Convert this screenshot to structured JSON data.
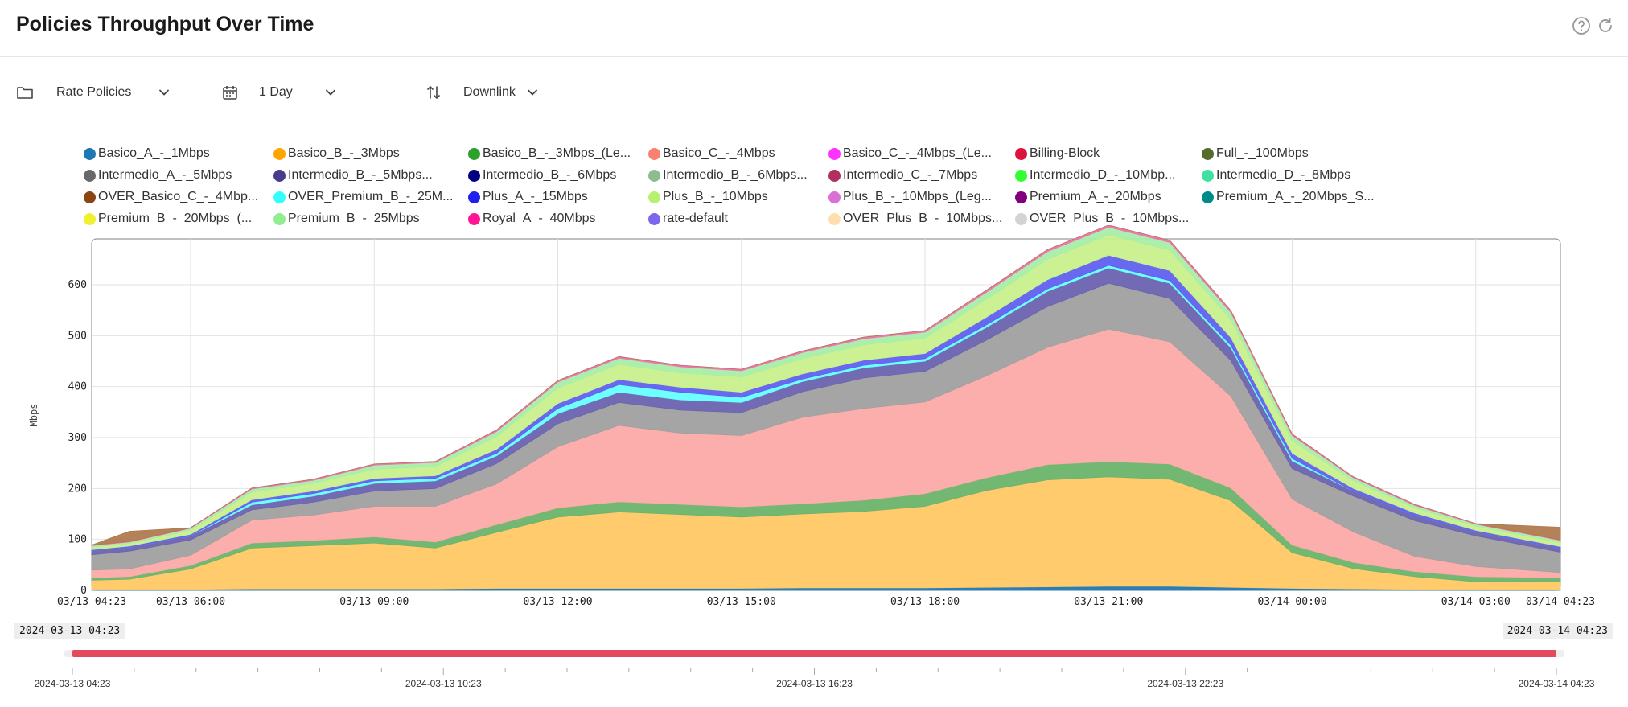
{
  "header": {
    "title": "Policies Throughput Over Time"
  },
  "toolbar": {
    "policy_label": "Rate Policies",
    "period_label": "1 Day",
    "direction_label": "Downlink"
  },
  "legend": [
    {
      "name": "Basico_A_-_1Mbps",
      "color": "#1f77b4"
    },
    {
      "name": "Basico_B_-_3Mbps",
      "color": "#ffa500"
    },
    {
      "name": "Basico_B_-_3Mbps_(Le...",
      "color": "#2ca02c"
    },
    {
      "name": "Basico_C_-_4Mbps",
      "color": "#fa8072"
    },
    {
      "name": "Basico_C_-_4Mbps_(Le...",
      "color": "#ff33ff"
    },
    {
      "name": "Billing-Block",
      "color": "#dc143c"
    },
    {
      "name": "Full_-_100Mbps",
      "color": "#556b2f"
    },
    {
      "name": "Intermedio_A_-_5Mbps",
      "color": "#696969"
    },
    {
      "name": "Intermedio_B_-_5Mbps...",
      "color": "#483d8b"
    },
    {
      "name": "Intermedio_B_-_6Mbps",
      "color": "#000080"
    },
    {
      "name": "Intermedio_B_-_6Mbps...",
      "color": "#8fbc8f"
    },
    {
      "name": "Intermedio_C_-_7Mbps",
      "color": "#b03060"
    },
    {
      "name": "Intermedio_D_-_10Mbp...",
      "color": "#32ff32"
    },
    {
      "name": "Intermedio_D_-_8Mbps",
      "color": "#40e0a0"
    },
    {
      "name": "OVER_Basico_C_-_4Mbp...",
      "color": "#8b4513"
    },
    {
      "name": "OVER_Premium_B_-_25M...",
      "color": "#33ffff"
    },
    {
      "name": "Plus_A_-_15Mbps",
      "color": "#2020ee"
    },
    {
      "name": "Plus_B_-_10Mbps",
      "color": "#b8f070"
    },
    {
      "name": "Plus_B_-_10Mbps_(Leg...",
      "color": "#da70d6"
    },
    {
      "name": "Premium_A_-_20Mbps",
      "color": "#800080"
    },
    {
      "name": "Premium_A_-_20Mbps_S...",
      "color": "#008b8b"
    },
    {
      "name": "Premium_B_-_20Mbps_(...",
      "color": "#f0f030"
    },
    {
      "name": "Premium_B_-_25Mbps",
      "color": "#90ee90"
    },
    {
      "name": "Royal_A_-_40Mbps",
      "color": "#ff1493"
    },
    {
      "name": "rate-default",
      "color": "#7b68ee"
    },
    {
      "name": "OVER_Plus_B_-_10Mbps...",
      "color": "#ffdead"
    },
    {
      "name": "OVER_Plus_B_-_10Mbps...",
      "color": "#d3d3d3"
    }
  ],
  "chart_data": {
    "type": "area",
    "stacked": true,
    "ylabel": "Mbps",
    "ylim": [
      0,
      690
    ],
    "yticks": [
      0,
      100,
      200,
      300,
      400,
      500,
      600
    ],
    "xtick_labels": [
      "03/13 04:23",
      "03/13 06:00",
      "03/13 09:00",
      "03/13 12:00",
      "03/13 15:00",
      "03/13 18:00",
      "03/13 21:00",
      "03/14 00:00",
      "03/14 03:00",
      "03/14 04:23"
    ],
    "grid": true,
    "legend_position": "top",
    "x": [
      "03/13 04:23",
      "03/13 05:00",
      "03/13 06:00",
      "03/13 07:00",
      "03/13 08:00",
      "03/13 09:00",
      "03/13 10:00",
      "03/13 11:00",
      "03/13 12:00",
      "03/13 13:00",
      "03/13 14:00",
      "03/13 15:00",
      "03/13 16:00",
      "03/13 17:00",
      "03/13 18:00",
      "03/13 19:00",
      "03/13 20:00",
      "03/13 21:00",
      "03/13 22:00",
      "03/13 23:00",
      "03/14 00:00",
      "03/14 01:00",
      "03/14 02:00",
      "03/14 03:00",
      "03/14 04:23"
    ],
    "series": [
      {
        "name": "Basico_A_-_1Mbps",
        "color": "#1f77b4",
        "values": [
          2,
          2,
          2,
          3,
          3,
          3,
          3,
          4,
          4,
          4,
          4,
          4,
          5,
          5,
          5,
          6,
          7,
          8,
          8,
          6,
          4,
          3,
          2,
          2,
          2
        ]
      },
      {
        "name": "Basico_B_-_3Mbps",
        "color": "#ffc864",
        "values": [
          18,
          20,
          40,
          80,
          85,
          90,
          80,
          110,
          140,
          150,
          145,
          140,
          145,
          150,
          160,
          190,
          210,
          215,
          210,
          170,
          70,
          40,
          25,
          15,
          15
        ]
      },
      {
        "name": "Basico_B_-_3Mbps_(Le...",
        "color": "#6ab46a",
        "values": [
          5,
          5,
          7,
          10,
          10,
          12,
          12,
          15,
          18,
          20,
          20,
          20,
          20,
          22,
          25,
          25,
          30,
          30,
          30,
          25,
          15,
          12,
          10,
          10,
          8
        ]
      },
      {
        "name": "Basico_C_-_4Mbps",
        "color": "#fbaaa6",
        "values": [
          15,
          15,
          20,
          45,
          50,
          60,
          70,
          80,
          120,
          150,
          140,
          140,
          170,
          180,
          180,
          200,
          230,
          260,
          240,
          180,
          90,
          60,
          30,
          20,
          10
        ]
      },
      {
        "name": "Intermedio_A_-_5Mbps",
        "color": "#a0a0a0",
        "values": [
          30,
          35,
          30,
          20,
          25,
          30,
          35,
          40,
          45,
          45,
          45,
          45,
          50,
          60,
          60,
          70,
          80,
          90,
          85,
          70,
          60,
          70,
          70,
          60,
          40
        ]
      },
      {
        "name": "Intermedio_B_-_5Mbps...",
        "color": "#6a63b0",
        "values": [
          8,
          8,
          8,
          10,
          12,
          15,
          15,
          15,
          20,
          20,
          20,
          20,
          20,
          20,
          20,
          25,
          30,
          30,
          30,
          25,
          15,
          10,
          10,
          8,
          8
        ]
      },
      {
        "name": "OVER_Premium_B_-_25M...",
        "color": "#66ffff",
        "values": [
          0,
          0,
          0,
          5,
          5,
          5,
          5,
          5,
          10,
          15,
          15,
          10,
          5,
          5,
          5,
          5,
          5,
          5,
          5,
          5,
          5,
          0,
          0,
          0,
          0
        ]
      },
      {
        "name": "Plus_A_-_15Mbps",
        "color": "#6060f0",
        "values": [
          2,
          2,
          3,
          5,
          5,
          5,
          5,
          8,
          10,
          10,
          10,
          10,
          10,
          10,
          10,
          15,
          18,
          20,
          20,
          15,
          10,
          5,
          5,
          3,
          3
        ]
      },
      {
        "name": "Plus_B_-_10Mbps",
        "color": "#c8f08c",
        "values": [
          5,
          5,
          8,
          15,
          15,
          18,
          18,
          25,
          30,
          30,
          28,
          30,
          30,
          30,
          30,
          35,
          40,
          40,
          40,
          35,
          25,
          15,
          10,
          8,
          8
        ]
      },
      {
        "name": "Premium_B_-_25Mbps",
        "color": "#a8eea8",
        "values": [
          3,
          3,
          4,
          6,
          6,
          8,
          8,
          10,
          12,
          12,
          12,
          12,
          12,
          12,
          12,
          14,
          15,
          15,
          15,
          14,
          10,
          6,
          5,
          4,
          4
        ]
      },
      {
        "name": "Royal_A_-_40Mbps",
        "color": "#f070b0",
        "values": [
          1,
          1,
          1,
          2,
          2,
          2,
          2,
          3,
          3,
          3,
          3,
          3,
          3,
          3,
          3,
          4,
          4,
          4,
          4,
          4,
          3,
          2,
          2,
          1,
          1
        ]
      },
      {
        "name": "OVER_Basico_C_-_4Mbp...",
        "color": "#b07a50",
        "values": [
          0,
          20,
          0,
          0,
          0,
          0,
          0,
          0,
          0,
          0,
          0,
          0,
          0,
          0,
          0,
          0,
          0,
          0,
          0,
          0,
          0,
          0,
          0,
          0,
          25
        ]
      }
    ]
  },
  "range": {
    "start": "2024-03-13 04:23",
    "end": "2024-03-14 04:23"
  },
  "brush_ticks": [
    "2024-03-13 04:23",
    "2024-03-13 10:23",
    "2024-03-13 16:23",
    "2024-03-13 22:23",
    "2024-03-14 04:23"
  ]
}
